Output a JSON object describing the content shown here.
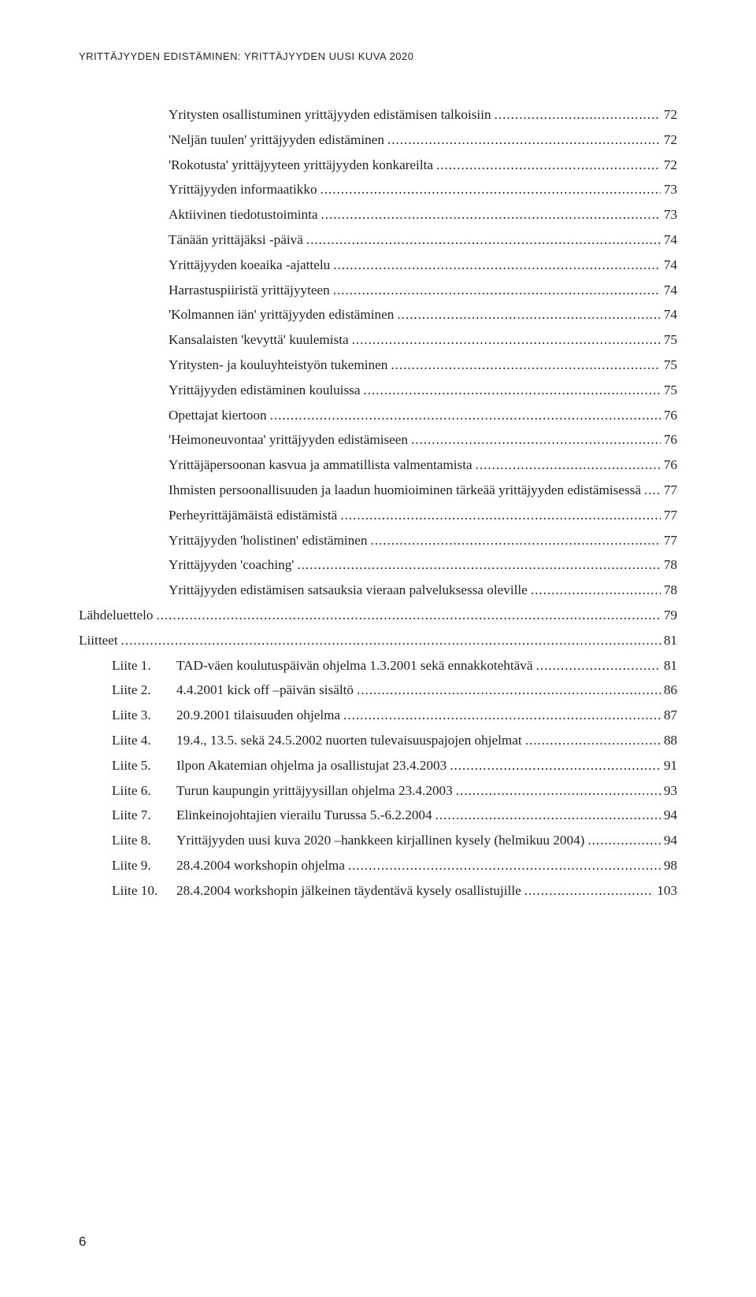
{
  "header": "YRITTÄJYYDEN EDISTÄMINEN: YRITTÄJYYDEN UUSI KUVA 2020",
  "pageNumber": "6",
  "toc": [
    {
      "indent": 2,
      "label": "Yritysten osallistuminen yrittäjyyden edistämisen talkoisiin",
      "page": "72"
    },
    {
      "indent": 2,
      "label": "'Neljän tuulen' yrittäjyyden edistäminen",
      "page": "72"
    },
    {
      "indent": 2,
      "label": "'Rokotusta' yrittäjyyteen yrittäjyyden konkareilta",
      "page": "72"
    },
    {
      "indent": 2,
      "label": "Yrittäjyyden informaatikko",
      "page": "73"
    },
    {
      "indent": 2,
      "label": "Aktiivinen tiedotustoiminta",
      "page": "73"
    },
    {
      "indent": 2,
      "label": "Tänään yrittäjäksi -päivä",
      "page": "74"
    },
    {
      "indent": 2,
      "label": "Yrittäjyyden koeaika -ajattelu",
      "page": "74"
    },
    {
      "indent": 2,
      "label": "Harrastuspiiristä yrittäjyyteen",
      "page": "74"
    },
    {
      "indent": 2,
      "label": "'Kolmannen iän' yrittäjyyden edistäminen",
      "page": "74"
    },
    {
      "indent": 2,
      "label": "Kansalaisten 'kevyttä' kuulemista",
      "page": "75"
    },
    {
      "indent": 2,
      "label": "Yritysten- ja kouluyhteistyön tukeminen",
      "page": "75"
    },
    {
      "indent": 2,
      "label": "Yrittäjyyden edistäminen kouluissa",
      "page": "75"
    },
    {
      "indent": 2,
      "label": "Opettajat kiertoon",
      "page": "76"
    },
    {
      "indent": 2,
      "label": "'Heimoneuvontaa' yrittäjyyden edistämiseen",
      "page": "76"
    },
    {
      "indent": 2,
      "label": "Yrittäjäpersoonan kasvua ja ammatillista valmentamista",
      "page": "76"
    },
    {
      "indent": 2,
      "label": "Ihmisten persoonallisuuden ja laadun huomioiminen tärkeää yrittäjyyden edistämisessä",
      "page": "77"
    },
    {
      "indent": 2,
      "label": "Perheyrittäjämäistä edistämistä",
      "page": "77"
    },
    {
      "indent": 2,
      "label": "Yrittäjyyden 'holistinen' edistäminen",
      "page": "77"
    },
    {
      "indent": 2,
      "label": "Yrittäjyyden 'coaching'",
      "page": "78"
    },
    {
      "indent": 2,
      "label": "Yrittäjyyden edistämisen satsauksia vieraan palveluksessa oleville",
      "page": "78"
    },
    {
      "indent": 0,
      "label": "Lähdeluettelo",
      "page": "79"
    },
    {
      "indent": 0,
      "label": "Liitteet",
      "page": "81"
    }
  ],
  "liitteet": [
    {
      "tag": "Liite 1.",
      "title": "TAD-väen koulutuspäivän ohjelma 1.3.2001 sekä ennakkotehtävä",
      "page": "81"
    },
    {
      "tag": "Liite 2.",
      "title": "4.4.2001 kick off –päivän sisältö",
      "page": "86"
    },
    {
      "tag": "Liite 3.",
      "title": "20.9.2001 tilaisuuden ohjelma",
      "page": "87"
    },
    {
      "tag": "Liite 4.",
      "title": "19.4., 13.5. sekä 24.5.2002 nuorten tulevaisuuspajojen ohjelmat",
      "page": "88"
    },
    {
      "tag": "Liite 5.",
      "title": "Ilpon Akatemian ohjelma ja osallistujat 23.4.2003",
      "page": "91"
    },
    {
      "tag": "Liite 6.",
      "title": "Turun kaupungin yrittäjyysillan ohjelma 23.4.2003",
      "page": "93"
    },
    {
      "tag": "Liite 7.",
      "title": "Elinkeinojohtajien vierailu Turussa 5.-6.2.2004",
      "page": "94"
    },
    {
      "tag": "Liite 8.",
      "title": "Yrittäjyyden uusi kuva 2020 –hankkeen kirjallinen kysely (helmikuu 2004)",
      "page": "94"
    },
    {
      "tag": "Liite 9.",
      "title": "28.4.2004 workshopin ohjelma",
      "page": "98"
    },
    {
      "tag": "Liite 10.",
      "title": "28.4.2004 workshopin jälkeinen täydentävä kysely osallistujille",
      "page": "103"
    }
  ]
}
